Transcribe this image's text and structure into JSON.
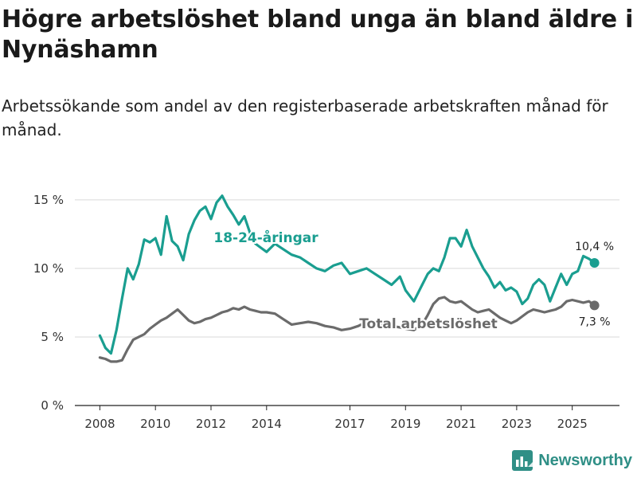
{
  "header": {
    "title": "Högre arbetslöshet bland unga än bland äldre i Nynäshamn",
    "subtitle": "Arbetssökande som andel av den registerbaserade arbetskraften månad för månad."
  },
  "brand": {
    "name": "Newsworthy"
  },
  "colors": {
    "youth": "#1a9e90",
    "total": "#6b6b6b",
    "grid": "#d9d9d9",
    "brand": "#2f8f86"
  },
  "chart_data": {
    "type": "line",
    "title": "Högre arbetslöshet bland unga än bland äldre i Nynäshamn",
    "ylim": [
      0,
      16.5
    ],
    "y_ticks": [
      0,
      5,
      10,
      15
    ],
    "y_tick_labels": [
      "0 %",
      "5 %",
      "10 %",
      "15 %"
    ],
    "x_ticks": [
      2008,
      2010,
      2012,
      2014,
      2017,
      2019,
      2021,
      2023,
      2025
    ],
    "x_tick_labels": [
      "2008",
      "2010",
      "2012",
      "2014",
      "2017",
      "2019",
      "2021",
      "2023",
      "2025"
    ],
    "xlim": [
      2007.1,
      2026.7
    ],
    "series": [
      {
        "name": "18-24-åringar",
        "label": "18-24-åringar",
        "end_label": "10,4 %",
        "x": [
          2008.0,
          2008.2,
          2008.4,
          2008.6,
          2008.8,
          2009.0,
          2009.2,
          2009.4,
          2009.6,
          2009.8,
          2010.0,
          2010.2,
          2010.4,
          2010.6,
          2010.8,
          2011.0,
          2011.2,
          2011.4,
          2011.6,
          2011.8,
          2012.0,
          2012.2,
          2012.4,
          2012.6,
          2012.8,
          2013.0,
          2013.2,
          2013.4,
          2013.6,
          2013.8,
          2014.0,
          2014.3,
          2014.6,
          2014.9,
          2015.2,
          2015.5,
          2015.8,
          2016.1,
          2016.4,
          2016.7,
          2017.0,
          2017.3,
          2017.6,
          2017.9,
          2018.2,
          2018.5,
          2018.8,
          2019.0,
          2019.3,
          2019.6,
          2019.8,
          2020.0,
          2020.2,
          2020.4,
          2020.6,
          2020.8,
          2021.0,
          2021.2,
          2021.4,
          2021.6,
          2021.8,
          2022.0,
          2022.2,
          2022.4,
          2022.6,
          2022.8,
          2023.0,
          2023.2,
          2023.4,
          2023.6,
          2023.8,
          2024.0,
          2024.2,
          2024.4,
          2024.6,
          2024.8,
          2025.0,
          2025.2,
          2025.4,
          2025.6,
          2025.8
        ],
        "values": [
          5.1,
          4.2,
          3.8,
          5.5,
          7.8,
          10.0,
          9.2,
          10.3,
          12.1,
          11.9,
          12.2,
          11.0,
          13.8,
          12.0,
          11.6,
          10.6,
          12.5,
          13.5,
          14.2,
          14.5,
          13.6,
          14.8,
          15.3,
          14.5,
          13.9,
          13.2,
          13.8,
          12.6,
          11.8,
          11.5,
          11.2,
          11.8,
          11.4,
          11.0,
          10.8,
          10.4,
          10.0,
          9.8,
          10.2,
          10.4,
          9.6,
          9.8,
          10.0,
          9.6,
          9.2,
          8.8,
          9.4,
          8.4,
          7.6,
          8.8,
          9.6,
          10.0,
          9.8,
          10.8,
          12.2,
          12.2,
          11.6,
          12.8,
          11.6,
          10.8,
          10.0,
          9.4,
          8.6,
          9.0,
          8.4,
          8.6,
          8.3,
          7.4,
          7.8,
          8.8,
          9.2,
          8.8,
          7.6,
          8.6,
          9.6,
          8.8,
          9.6,
          9.8,
          10.9,
          10.7,
          10.4
        ]
      },
      {
        "name": "Total arbetslöshet",
        "label": "Total arbetslöshet",
        "end_label": "7,3 %",
        "x": [
          2008.0,
          2008.2,
          2008.4,
          2008.6,
          2008.8,
          2009.0,
          2009.2,
          2009.4,
          2009.6,
          2009.8,
          2010.0,
          2010.2,
          2010.4,
          2010.6,
          2010.8,
          2011.0,
          2011.2,
          2011.4,
          2011.6,
          2011.8,
          2012.0,
          2012.2,
          2012.4,
          2012.6,
          2012.8,
          2013.0,
          2013.2,
          2013.4,
          2013.6,
          2013.8,
          2014.0,
          2014.3,
          2014.6,
          2014.9,
          2015.2,
          2015.5,
          2015.8,
          2016.1,
          2016.4,
          2016.7,
          2017.0,
          2017.3,
          2017.6,
          2017.9,
          2018.2,
          2018.5,
          2018.8,
          2019.0,
          2019.3,
          2019.6,
          2019.8,
          2020.0,
          2020.2,
          2020.4,
          2020.6,
          2020.8,
          2021.0,
          2021.2,
          2021.4,
          2021.6,
          2021.8,
          2022.0,
          2022.2,
          2022.4,
          2022.6,
          2022.8,
          2023.0,
          2023.2,
          2023.4,
          2023.6,
          2023.8,
          2024.0,
          2024.2,
          2024.4,
          2024.6,
          2024.8,
          2025.0,
          2025.2,
          2025.4,
          2025.6,
          2025.8
        ],
        "values": [
          3.5,
          3.4,
          3.2,
          3.2,
          3.3,
          4.1,
          4.8,
          5.0,
          5.2,
          5.6,
          5.9,
          6.2,
          6.4,
          6.7,
          7.0,
          6.6,
          6.2,
          6.0,
          6.1,
          6.3,
          6.4,
          6.6,
          6.8,
          6.9,
          7.1,
          7.0,
          7.2,
          7.0,
          6.9,
          6.8,
          6.8,
          6.7,
          6.3,
          5.9,
          6.0,
          6.1,
          6.0,
          5.8,
          5.7,
          5.5,
          5.6,
          5.8,
          6.1,
          6.0,
          5.9,
          5.8,
          5.7,
          5.6,
          5.5,
          5.9,
          6.6,
          7.4,
          7.8,
          7.9,
          7.6,
          7.5,
          7.6,
          7.3,
          7.0,
          6.8,
          6.9,
          7.0,
          6.7,
          6.4,
          6.2,
          6.0,
          6.2,
          6.5,
          6.8,
          7.0,
          6.9,
          6.8,
          6.9,
          7.0,
          7.2,
          7.6,
          7.7,
          7.6,
          7.5,
          7.6,
          7.3
        ]
      }
    ]
  }
}
